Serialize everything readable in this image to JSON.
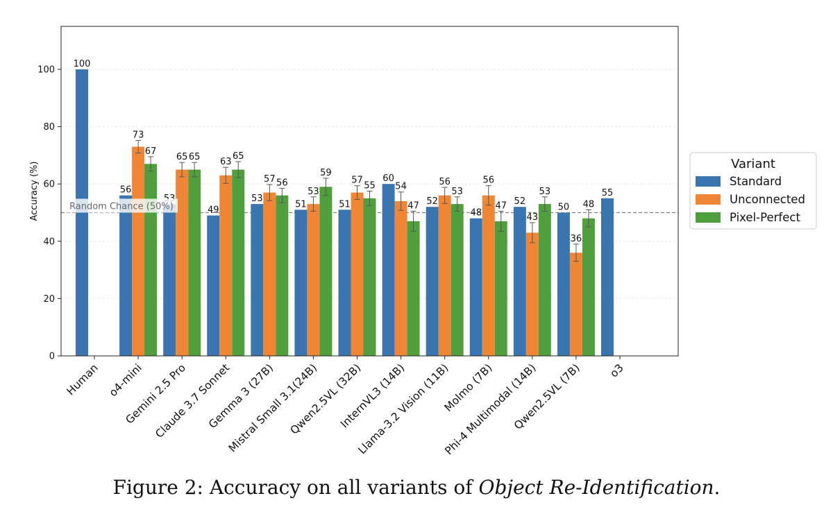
{
  "chart_data": {
    "type": "bar",
    "ylabel": "Accuracy (%)",
    "xlabel": "",
    "ylim": [
      0,
      115
    ],
    "yticks": [
      0,
      20,
      40,
      60,
      80,
      100
    ],
    "grid": "horizontal-dotted",
    "legend": {
      "title": "Variant",
      "placement": "right-outside"
    },
    "reference_line": {
      "value": 50,
      "label": "Random Chance (50%)",
      "color": "#808080"
    },
    "categories": [
      "Human",
      "o4-mini",
      "Gemini 2.5 Pro",
      "Claude 3.7 Sonnet",
      "Gemma 3 (27B)",
      "Mistral Small 3.1(24B)",
      "Qwen2.5VL (32B)",
      "InternVL3 (14B)",
      "Llama-3.2 Vision (11B)",
      "Molmo (7B)",
      "Phi-4 Multimodal (14B)",
      "Qwen2.5VL (7B)",
      "o3"
    ],
    "series": [
      {
        "name": "Standard",
        "color": "#3b75af",
        "values": [
          100,
          56,
          53,
          49,
          53,
          51,
          51,
          60,
          52,
          48,
          52,
          50,
          55
        ],
        "labels": [
          "100",
          "56",
          "53",
          "49",
          "53",
          "51",
          "51",
          "60",
          "52",
          "48",
          "52",
          "50",
          "55"
        ],
        "errors": [
          0,
          0,
          0,
          0,
          0,
          0,
          0,
          0,
          0,
          0,
          0,
          0,
          0
        ]
      },
      {
        "name": "Unconnected",
        "color": "#ef8636",
        "values": [
          0,
          73,
          65,
          63,
          57,
          53,
          57,
          54,
          56,
          56,
          43,
          36,
          0
        ],
        "labels": [
          "",
          "73",
          "65",
          "63",
          "57",
          "53",
          "57",
          "54",
          "56",
          "56",
          "43",
          "36",
          ""
        ],
        "errors": [
          0,
          2.2,
          2.5,
          2.8,
          2.8,
          2.5,
          2.4,
          3.2,
          2.8,
          3.4,
          3.5,
          3.0,
          0
        ]
      },
      {
        "name": "Pixel-Perfect",
        "color": "#519e3e",
        "values": [
          0,
          67,
          65,
          65,
          56,
          59,
          55,
          47,
          53,
          47,
          53,
          48,
          0
        ],
        "labels": [
          "",
          "67",
          "65",
          "65",
          "56",
          "59",
          "55",
          "47",
          "53",
          "47",
          "53",
          "48",
          ""
        ],
        "errors": [
          0,
          2.5,
          2.5,
          2.8,
          2.5,
          3.0,
          2.5,
          3.5,
          2.5,
          3.5,
          2.5,
          3.0,
          0
        ]
      }
    ]
  },
  "caption": {
    "prefix": "Figure 2:  Accuracy on all variants of ",
    "emphasis": "Object Re-Identification",
    "suffix": "."
  }
}
